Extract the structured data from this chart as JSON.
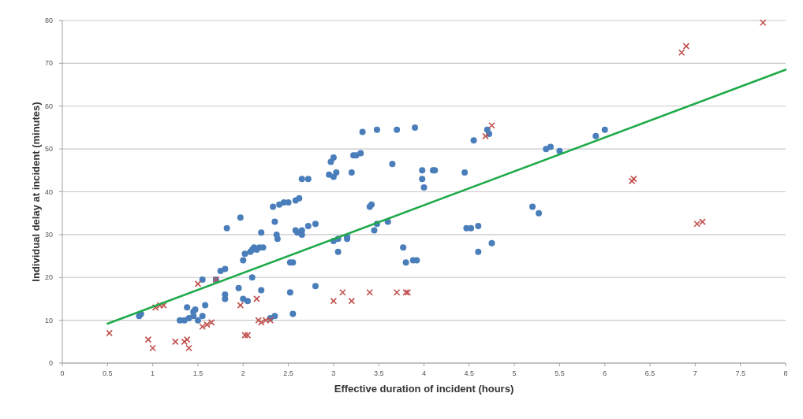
{
  "chart_data": {
    "type": "scatter",
    "xlabel": "Effective duration of incident (hours)",
    "ylabel": "Individual delay at incident (minutes)",
    "xlim": [
      0,
      8
    ],
    "xticks": [
      0,
      0.5,
      1,
      1.5,
      2,
      2.5,
      3,
      3.5,
      4,
      4.5,
      5,
      5.5,
      6,
      6.5,
      7,
      7.5,
      8
    ],
    "ylim": [
      0,
      80
    ],
    "yticks": [
      0,
      10,
      20,
      30,
      40,
      50,
      60,
      70,
      80
    ],
    "grid": "y",
    "series": [
      {
        "color": "#4a7ebb",
        "marker": "circle",
        "x": [
          0.85,
          0.87,
          1.3,
          1.35,
          1.4,
          1.38,
          1.45,
          1.45,
          1.5,
          1.47,
          1.55,
          1.58,
          1.55,
          1.7,
          1.75,
          1.8,
          1.8,
          1.8,
          1.82,
          1.95,
          2.0,
          2.05,
          1.97,
          2.0,
          2.02,
          2.08,
          2.1,
          2.12,
          2.15,
          2.18,
          2.22,
          2.1,
          2.2,
          2.2,
          2.3,
          2.35,
          2.33,
          2.35,
          2.37,
          2.38,
          2.4,
          2.45,
          2.5,
          2.52,
          2.55,
          2.52,
          2.55,
          2.58,
          2.58,
          2.6,
          2.62,
          2.65,
          2.65,
          2.65,
          2.72,
          2.72,
          2.8,
          2.8,
          2.95,
          2.97,
          3.0,
          3.0,
          3.03,
          3.05,
          3.05,
          3.0,
          3.15,
          3.15,
          3.2,
          3.22,
          3.25,
          3.3,
          3.32,
          3.4,
          3.42,
          3.45,
          3.48,
          3.48,
          3.6,
          3.65,
          3.7,
          3.77,
          3.8,
          3.88,
          3.92,
          3.9,
          3.98,
          3.98,
          4.0,
          4.1,
          4.12,
          4.45,
          4.47,
          4.52,
          4.6,
          4.6,
          4.55,
          4.7,
          4.75,
          4.72,
          5.2,
          5.27,
          5.35,
          5.4,
          5.5,
          5.9,
          6.0
        ],
        "values": [
          11,
          11.5,
          10,
          10,
          10.5,
          13,
          12,
          11,
          10,
          12.5,
          11,
          13.5,
          19.5,
          19.5,
          21.5,
          22,
          16,
          15,
          31.5,
          17.5,
          15,
          14.5,
          34,
          24,
          25.5,
          26,
          26.5,
          27,
          26.5,
          27,
          27,
          20,
          30.5,
          17,
          10.5,
          11,
          36.5,
          33,
          30,
          29,
          37,
          37.5,
          37.5,
          23.5,
          23.5,
          16.5,
          11.5,
          38,
          31,
          30.5,
          38.5,
          43,
          30,
          31,
          43,
          32,
          32.5,
          18,
          44,
          47,
          48,
          43.5,
          44.5,
          29,
          26,
          28.5,
          29.5,
          29,
          44.5,
          48.5,
          48.5,
          49,
          54,
          36.5,
          37,
          31,
          32.5,
          54.5,
          33,
          46.5,
          54.5,
          27,
          23.5,
          24,
          24,
          55,
          45,
          43,
          41,
          45,
          45,
          44.5,
          31.5,
          31.5,
          32,
          26,
          52,
          54.5,
          28,
          53.5,
          36.5,
          35,
          50,
          50.5,
          49.5,
          53,
          54.5
        ]
      },
      {
        "color": "#c0504d",
        "marker": "cross",
        "x": [
          0.52,
          0.95,
          1.0,
          1.03,
          1.08,
          1.12,
          1.25,
          1.35,
          1.38,
          1.4,
          1.5,
          1.55,
          1.6,
          1.65,
          1.7,
          1.97,
          2.02,
          2.05,
          2.15,
          2.17,
          2.2,
          2.25,
          2.3,
          3.0,
          3.1,
          3.2,
          3.4,
          3.7,
          3.8,
          3.82,
          4.68,
          4.75,
          6.3,
          6.32,
          6.85,
          6.9,
          7.02,
          7.08,
          7.75
        ],
        "values": [
          7,
          5.5,
          3.5,
          13,
          13.5,
          13.5,
          5,
          5,
          5.5,
          3.5,
          18.5,
          8.5,
          9,
          9.5,
          19.5,
          13.5,
          6.5,
          6.5,
          15,
          10,
          9.5,
          10,
          10,
          14.5,
          16.5,
          14.5,
          16.5,
          16.5,
          16.5,
          16.5,
          53,
          55.5,
          42.5,
          43,
          72.5,
          74,
          32.5,
          33,
          79.5
        ]
      },
      {
        "type": "line",
        "color": "#1faa4a",
        "marker": "none",
        "line_style": "solid",
        "x": [
          0.5,
          8
        ],
        "values": [
          9.2,
          68.5
        ]
      }
    ]
  }
}
